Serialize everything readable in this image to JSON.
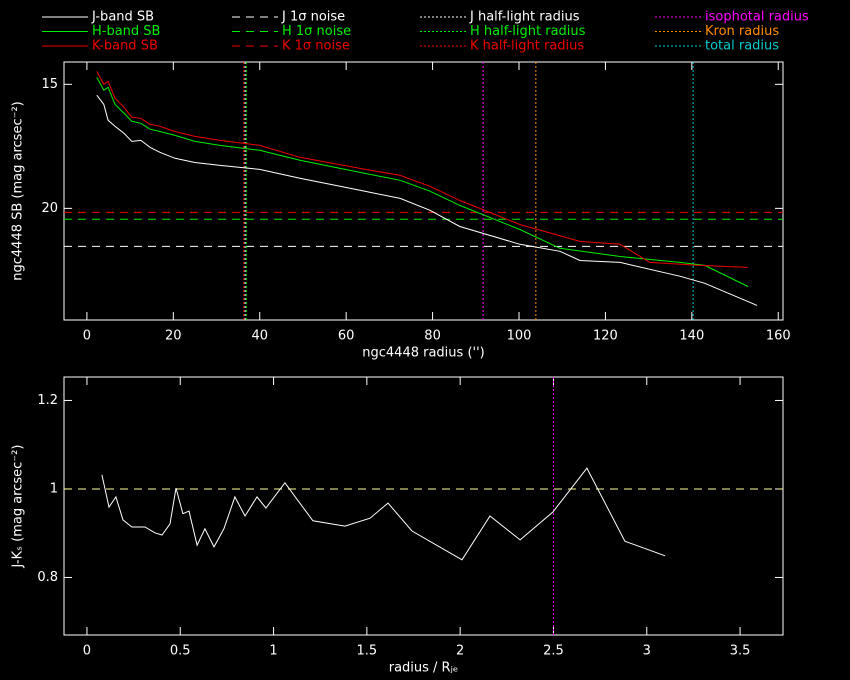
{
  "chart_data": [
    {
      "type": "line",
      "xlabel": "ngc4448 radius ('')",
      "ylabel": "ngc4448 SB (mag arcsec⁻²)",
      "xlim": [
        -5.3,
        161.1
      ],
      "xticks": [
        0,
        20,
        40,
        60,
        80,
        100,
        120,
        140,
        160
      ],
      "ylim": [
        24.5,
        14.1
      ],
      "yticks": [
        15,
        20
      ],
      "legend": "top",
      "series": [
        {
          "name": "J-band SB",
          "color": "#ffffff",
          "x": [
            2.3,
            3.9,
            4.9,
            6.5,
            8.6,
            10.4,
            12.5,
            14.6,
            16.9,
            20.4,
            25.0,
            30.8,
            40.0,
            49.3,
            63.2,
            72.5,
            79.4,
            86.3,
            100.2,
            109.5,
            114.1,
            123.4,
            137.3,
            143.0,
            155.1
          ],
          "values": [
            15.44,
            15.81,
            16.45,
            16.69,
            16.98,
            17.3,
            17.26,
            17.54,
            17.74,
            17.98,
            18.15,
            18.27,
            18.43,
            18.79,
            19.27,
            19.6,
            20.08,
            20.73,
            21.45,
            21.73,
            22.1,
            22.18,
            22.74,
            23.02,
            23.91
          ]
        },
        {
          "name": "H-band SB",
          "color": "#00ee00",
          "x": [
            2.3,
            3.9,
            4.9,
            6.5,
            8.6,
            10.4,
            12.5,
            14.6,
            16.9,
            20.4,
            25.0,
            30.8,
            40.0,
            49.3,
            63.2,
            72.5,
            79.4,
            86.3,
            100.2,
            109.5,
            123.4,
            137.3,
            143.0,
            153.0
          ],
          "values": [
            14.72,
            15.24,
            15.12,
            15.81,
            16.17,
            16.49,
            16.57,
            16.81,
            16.9,
            17.06,
            17.3,
            17.46,
            17.66,
            18.06,
            18.55,
            18.87,
            19.31,
            19.88,
            20.85,
            21.61,
            21.94,
            22.18,
            22.3,
            23.15
          ]
        },
        {
          "name": "K-band SB",
          "color": "#ee0000",
          "x": [
            2.3,
            3.9,
            4.9,
            6.5,
            8.6,
            10.4,
            12.5,
            14.6,
            16.9,
            20.4,
            25.0,
            30.8,
            40.0,
            49.3,
            63.2,
            72.5,
            79.4,
            86.3,
            100.2,
            114.1,
            123.4,
            130.3,
            141.9,
            153.0
          ],
          "values": [
            14.48,
            15.0,
            14.88,
            15.56,
            15.93,
            16.33,
            16.37,
            16.61,
            16.69,
            16.9,
            17.1,
            17.26,
            17.46,
            17.94,
            18.39,
            18.67,
            19.11,
            19.68,
            20.65,
            21.33,
            21.45,
            22.18,
            22.3,
            22.38
          ]
        }
      ],
      "noise": [
        {
          "name": "J 1σ noise",
          "color": "#ffffff",
          "value": 21.53
        },
        {
          "name": "H 1σ noise",
          "color": "#00ee00",
          "value": 20.44
        },
        {
          "name": "K 1σ noise",
          "color": "#ee0000",
          "value": 20.16
        }
      ],
      "radii": [
        {
          "name": "J half-light radius",
          "color": "#ffffff",
          "value": 36.6
        },
        {
          "name": "H half-light radius",
          "color": "#00ee00",
          "value": 36.9
        },
        {
          "name": "K half-light radius",
          "color": "#ee0000",
          "value": 36.3
        },
        {
          "name": "isophotal radius",
          "color": "#ff00ff",
          "value": 91.7
        },
        {
          "name": "Kron radius",
          "color": "#ff8c00",
          "value": 103.9
        },
        {
          "name": "total radius",
          "color": "#00cccc",
          "value": 140.3
        }
      ]
    },
    {
      "type": "line",
      "xlabel": "radius / Rⱼₑ",
      "ylabel": "J-Kₛ (mag arcsec⁻²)",
      "xlim": [
        -0.123,
        3.73
      ],
      "xticks": [
        0,
        0.5,
        1,
        1.5,
        2,
        2.5,
        3,
        3.5
      ],
      "ylim": [
        0.67,
        1.253
      ],
      "yticks": [
        0.8,
        1,
        1.2
      ],
      "series": [
        {
          "color": "#ffffff",
          "x": [
            0.08,
            0.118,
            0.155,
            0.193,
            0.241,
            0.311,
            0.364,
            0.402,
            0.445,
            0.477,
            0.514,
            0.547,
            0.59,
            0.632,
            0.681,
            0.734,
            0.793,
            0.847,
            0.911,
            0.959,
            1.061,
            1.211,
            1.383,
            1.517,
            1.613,
            1.742,
            2.01,
            2.16,
            2.321,
            2.497,
            2.679,
            2.883,
            3.098
          ],
          "values": [
            1.032,
            0.959,
            0.982,
            0.93,
            0.914,
            0.914,
            0.901,
            0.896,
            0.921,
            1.002,
            0.944,
            0.95,
            0.873,
            0.91,
            0.869,
            0.91,
            0.982,
            0.939,
            0.982,
            0.957,
            1.014,
            0.928,
            0.916,
            0.934,
            0.968,
            0.905,
            0.84,
            0.939,
            0.885,
            0.948,
            1.047,
            0.882,
            0.849
          ]
        }
      ],
      "hlines": [
        {
          "color": "#ffff99",
          "value": 1
        }
      ],
      "vlines": [
        {
          "color": "#ff00ff",
          "value": 2.5
        }
      ]
    }
  ]
}
